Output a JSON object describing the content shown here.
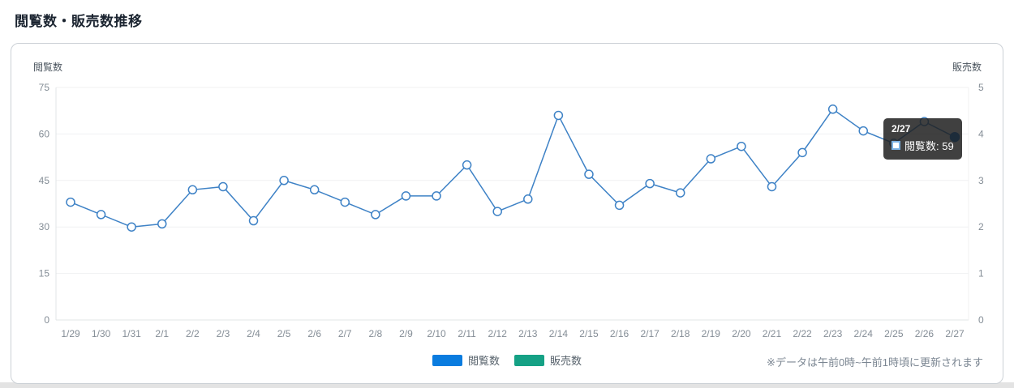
{
  "page": {
    "title": "閲覧数・販売数推移",
    "footnote": "※データは午前0時~午前1時頃に更新されます"
  },
  "legend": {
    "views_label": "閲覧数",
    "sales_label": "販売数"
  },
  "tooltip": {
    "title": "2/27",
    "text": "閲覧数: 59"
  },
  "colors": {
    "views_legend": "#0a7cdf",
    "sales_legend": "#15a185",
    "line": "#3e82c6",
    "point_fill": "#ffffff",
    "active_point": "#0c6fd4",
    "grid": "#f0f1f2",
    "axis_line": "#e0e4e7",
    "tick_text": "#848d96"
  },
  "chart_data": {
    "type": "line",
    "title": "閲覧数・販売数推移",
    "x": [
      "1/29",
      "1/30",
      "1/31",
      "2/1",
      "2/2",
      "2/3",
      "2/4",
      "2/5",
      "2/6",
      "2/7",
      "2/8",
      "2/9",
      "2/10",
      "2/11",
      "2/12",
      "2/13",
      "2/14",
      "2/15",
      "2/16",
      "2/17",
      "2/18",
      "2/19",
      "2/20",
      "2/21",
      "2/22",
      "2/23",
      "2/24",
      "2/25",
      "2/26",
      "2/27"
    ],
    "series": [
      {
        "name": "閲覧数",
        "yaxis": "left",
        "values": [
          38,
          34,
          30,
          31,
          42,
          43,
          32,
          45,
          42,
          38,
          34,
          40,
          40,
          50,
          35,
          39,
          66,
          47,
          37,
          44,
          41,
          52,
          56,
          43,
          54,
          68,
          61,
          57,
          64,
          59
        ]
      },
      {
        "name": "販売数",
        "yaxis": "right",
        "values": []
      }
    ],
    "left_axis": {
      "title": "閲覧数",
      "ticks": [
        0,
        15,
        30,
        45,
        60,
        75
      ],
      "range": [
        0,
        75
      ]
    },
    "right_axis": {
      "title": "販売数",
      "ticks": [
        0,
        1,
        2,
        3,
        4,
        5
      ],
      "range": [
        0,
        5
      ]
    },
    "grid": "horizontal-only",
    "legend_position": "bottom",
    "hovered_point": {
      "x": "2/27",
      "series": "閲覧数",
      "value": 59
    }
  }
}
